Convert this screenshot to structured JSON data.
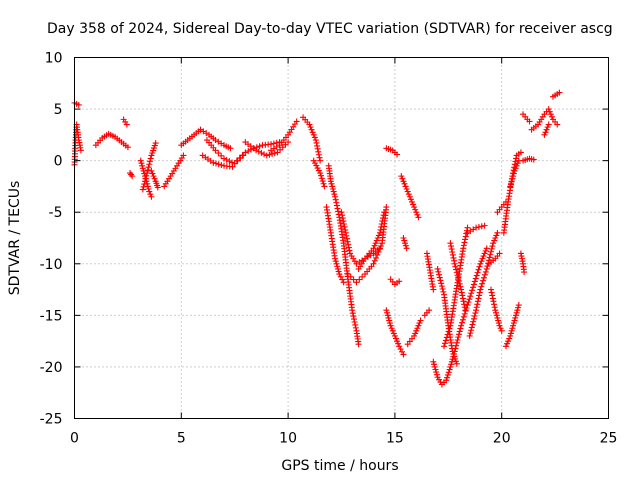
{
  "chart_data": {
    "type": "scatter",
    "title": "Day 358 of 2024, Sidereal Day-to-day VTEC variation (SDTVAR) for receiver ascg",
    "xlabel": "GPS time / hours",
    "ylabel": "SDTVAR / TECUs",
    "xlim": [
      0,
      25
    ],
    "ylim": [
      -25,
      10
    ],
    "xticks": [
      0,
      5,
      10,
      15,
      20,
      25
    ],
    "yticks": [
      -25,
      -20,
      -15,
      -10,
      -5,
      0,
      5,
      10
    ],
    "xtick_labels": [
      "0",
      "5",
      "10",
      "15",
      "20",
      "25"
    ],
    "ytick_labels": [
      "-25",
      "-20",
      "-15",
      "-10",
      "-5",
      "0",
      "5",
      "10"
    ],
    "grid": true,
    "marker": "+",
    "color": "#ff0000",
    "tracks": [
      [
        [
          0.0,
          -0.4
        ],
        [
          0.05,
          2.0
        ],
        [
          0.1,
          3.5
        ],
        [
          0.2,
          2.0
        ],
        [
          0.3,
          1.0
        ]
      ],
      [
        [
          0.0,
          5.6
        ],
        [
          0.1,
          5.5
        ],
        [
          0.2,
          5.4
        ]
      ],
      [
        [
          1.0,
          1.5
        ],
        [
          1.3,
          2.2
        ],
        [
          1.6,
          2.6
        ],
        [
          1.9,
          2.3
        ],
        [
          2.2,
          1.8
        ],
        [
          2.5,
          1.3
        ]
      ],
      [
        [
          2.3,
          4.0
        ],
        [
          2.45,
          3.5
        ]
      ],
      [
        [
          2.6,
          -1.2
        ],
        [
          2.7,
          -1.5
        ]
      ],
      [
        [
          3.1,
          0.0
        ],
        [
          3.3,
          -1.5
        ],
        [
          3.5,
          -3.0
        ],
        [
          3.6,
          -3.5
        ]
      ],
      [
        [
          3.2,
          -2.8
        ],
        [
          3.4,
          -1.2
        ],
        [
          3.6,
          0.5
        ],
        [
          3.8,
          1.7
        ]
      ],
      [
        [
          3.6,
          -1.0
        ],
        [
          3.8,
          -2.0
        ],
        [
          3.9,
          -2.6
        ]
      ],
      [
        [
          4.2,
          -2.5
        ],
        [
          4.5,
          -1.5
        ],
        [
          4.8,
          -0.5
        ],
        [
          5.1,
          0.5
        ]
      ],
      [
        [
          5.0,
          1.5
        ],
        [
          5.3,
          2.0
        ],
        [
          5.6,
          2.5
        ],
        [
          5.9,
          3.0
        ]
      ],
      [
        [
          5.9,
          3.0
        ],
        [
          6.3,
          2.5
        ],
        [
          6.6,
          2.0
        ],
        [
          7.0,
          1.5
        ],
        [
          7.3,
          1.2
        ]
      ],
      [
        [
          6.0,
          0.5
        ],
        [
          6.5,
          -0.2
        ],
        [
          7.0,
          -0.5
        ],
        [
          7.4,
          -0.6
        ]
      ],
      [
        [
          6.2,
          2.0
        ],
        [
          6.6,
          1.0
        ],
        [
          7.0,
          0.2
        ],
        [
          7.5,
          -0.3
        ],
        [
          7.9,
          0.5
        ]
      ],
      [
        [
          7.6,
          0.0
        ],
        [
          8.0,
          0.8
        ],
        [
          8.4,
          1.2
        ],
        [
          8.8,
          1.5
        ],
        [
          9.2,
          1.6
        ],
        [
          9.6,
          1.8
        ]
      ],
      [
        [
          8.0,
          1.8
        ],
        [
          8.5,
          1.0
        ],
        [
          9.0,
          0.5
        ],
        [
          9.5,
          0.8
        ],
        [
          10.0,
          1.8
        ]
      ],
      [
        [
          9.2,
          1.0
        ],
        [
          9.6,
          1.5
        ],
        [
          10.0,
          2.5
        ],
        [
          10.4,
          3.8
        ]
      ],
      [
        [
          10.7,
          4.2
        ],
        [
          11.0,
          3.5
        ],
        [
          11.3,
          2.0
        ],
        [
          11.5,
          0.0
        ]
      ],
      [
        [
          11.2,
          0.0
        ],
        [
          11.5,
          -1.2
        ],
        [
          11.7,
          -2.5
        ]
      ],
      [
        [
          11.9,
          -0.5
        ],
        [
          12.0,
          -2.0
        ],
        [
          12.2,
          -3.5
        ],
        [
          12.4,
          -5.5
        ],
        [
          12.6,
          -8.0
        ],
        [
          12.8,
          -11.5
        ],
        [
          13.0,
          -14.5
        ],
        [
          13.2,
          -16.5
        ],
        [
          13.3,
          -17.8
        ]
      ],
      [
        [
          11.8,
          -4.5
        ],
        [
          12.0,
          -7.0
        ],
        [
          12.2,
          -9.5
        ],
        [
          12.4,
          -11.0
        ],
        [
          12.6,
          -11.8
        ]
      ],
      [
        [
          12.5,
          -5.0
        ],
        [
          12.7,
          -7.0
        ],
        [
          12.9,
          -9.0
        ],
        [
          13.2,
          -10.0
        ],
        [
          13.6,
          -9.5
        ],
        [
          14.0,
          -9.0
        ],
        [
          14.3,
          -8.5
        ]
      ],
      [
        [
          12.8,
          -11.0
        ],
        [
          13.2,
          -11.8
        ],
        [
          13.6,
          -11.0
        ],
        [
          14.0,
          -10.0
        ],
        [
          14.4,
          -8.0
        ],
        [
          14.6,
          -4.5
        ]
      ],
      [
        [
          13.3,
          -10.5
        ],
        [
          13.6,
          -9.5
        ],
        [
          14.0,
          -8.5
        ],
        [
          14.3,
          -7.0
        ],
        [
          14.5,
          -5.0
        ]
      ],
      [
        [
          14.6,
          1.2
        ],
        [
          14.9,
          1.0
        ],
        [
          15.1,
          0.6
        ]
      ],
      [
        [
          14.6,
          -14.5
        ],
        [
          14.8,
          -16.0
        ],
        [
          15.0,
          -17.0
        ],
        [
          15.2,
          -18.0
        ],
        [
          15.4,
          -18.8
        ]
      ],
      [
        [
          14.8,
          -11.5
        ],
        [
          15.0,
          -12.0
        ],
        [
          15.2,
          -11.7
        ]
      ],
      [
        [
          15.3,
          -1.5
        ],
        [
          15.5,
          -2.5
        ],
        [
          15.7,
          -3.5
        ],
        [
          15.9,
          -4.5
        ],
        [
          16.1,
          -5.5
        ]
      ],
      [
        [
          15.4,
          -7.5
        ],
        [
          15.55,
          -8.5
        ]
      ],
      [
        [
          15.6,
          -17.8
        ],
        [
          15.9,
          -17.0
        ],
        [
          16.2,
          -15.5
        ]
      ],
      [
        [
          16.4,
          -15.0
        ],
        [
          16.6,
          -14.5
        ]
      ],
      [
        [
          16.5,
          -9.0
        ],
        [
          16.8,
          -12.5
        ]
      ],
      [
        [
          16.8,
          -19.5
        ],
        [
          17.0,
          -21.0
        ],
        [
          17.2,
          -21.7
        ],
        [
          17.4,
          -21.3
        ],
        [
          17.6,
          -20.0
        ],
        [
          17.8,
          -18.5
        ],
        [
          18.1,
          -16.0
        ],
        [
          18.4,
          -14.0
        ],
        [
          18.7,
          -12.0
        ],
        [
          19.0,
          -10.0
        ],
        [
          19.3,
          -8.5
        ]
      ],
      [
        [
          17.0,
          -10.5
        ],
        [
          17.3,
          -13.0
        ],
        [
          17.5,
          -16.0
        ],
        [
          17.7,
          -18.5
        ],
        [
          17.9,
          -19.7
        ]
      ],
      [
        [
          17.3,
          -18.0
        ],
        [
          17.6,
          -16.0
        ],
        [
          17.8,
          -13.5
        ],
        [
          18.0,
          -11.0
        ],
        [
          18.2,
          -8.5
        ],
        [
          18.4,
          -6.5
        ]
      ],
      [
        [
          17.6,
          -8.0
        ],
        [
          17.8,
          -10.0
        ],
        [
          18.1,
          -12.5
        ],
        [
          18.3,
          -14.5
        ]
      ],
      [
        [
          18.4,
          -7.0
        ],
        [
          18.8,
          -6.5
        ],
        [
          19.2,
          -6.3
        ]
      ],
      [
        [
          18.5,
          -17.0
        ],
        [
          18.8,
          -14.5
        ],
        [
          19.0,
          -12.5
        ],
        [
          19.3,
          -10.5
        ],
        [
          19.6,
          -8.0
        ],
        [
          19.8,
          -7.0
        ]
      ],
      [
        [
          19.4,
          -10.0
        ],
        [
          19.7,
          -9.5
        ],
        [
          19.9,
          -9.0
        ]
      ],
      [
        [
          19.5,
          -12.5
        ],
        [
          19.7,
          -14.5
        ],
        [
          19.9,
          -16.0
        ],
        [
          20.0,
          -16.5
        ]
      ],
      [
        [
          19.8,
          -5.0
        ],
        [
          20.0,
          -4.5
        ],
        [
          20.2,
          -4.0
        ]
      ],
      [
        [
          20.2,
          -18.0
        ],
        [
          20.4,
          -17.0
        ],
        [
          20.6,
          -15.5
        ],
        [
          20.8,
          -14.0
        ]
      ],
      [
        [
          20.1,
          -7.0
        ],
        [
          20.3,
          -4.0
        ],
        [
          20.5,
          -1.5
        ],
        [
          20.7,
          0.5
        ],
        [
          20.9,
          0.8
        ]
      ],
      [
        [
          20.4,
          -2.5
        ],
        [
          20.6,
          -1.0
        ],
        [
          20.8,
          0.0
        ]
      ],
      [
        [
          20.9,
          -9.0
        ],
        [
          21.0,
          -10.0
        ],
        [
          21.05,
          -10.8
        ]
      ],
      [
        [
          21.0,
          4.5
        ],
        [
          21.2,
          4.0
        ],
        [
          21.3,
          3.8
        ]
      ],
      [
        [
          21.0,
          0.0
        ],
        [
          21.3,
          0.2
        ],
        [
          21.5,
          0.1
        ]
      ],
      [
        [
          21.4,
          3.0
        ],
        [
          21.7,
          3.5
        ],
        [
          22.0,
          4.5
        ],
        [
          22.2,
          5.0
        ],
        [
          22.4,
          4.0
        ],
        [
          22.6,
          3.5
        ]
      ],
      [
        [
          22.0,
          2.5
        ],
        [
          22.2,
          3.5
        ]
      ],
      [
        [
          22.4,
          6.2
        ],
        [
          22.7,
          6.6
        ]
      ]
    ]
  }
}
